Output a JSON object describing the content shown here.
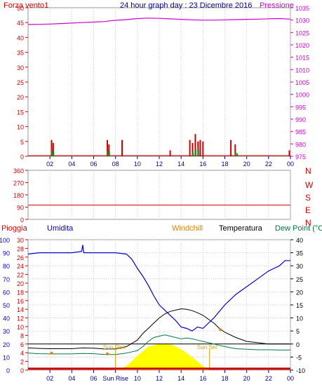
{
  "colors": {
    "wind": "#cc0000",
    "gust": "#cc0000",
    "windavg": "#228822",
    "pressure": "#cc00cc",
    "direction": "#cc0000",
    "rain": "#cc0000",
    "humidity": "#0000cc",
    "windchill": "#e08000",
    "temperature": "#000000",
    "dewpoint": "#007a40",
    "solar": "#ffff00",
    "grid": "#c8c8c8",
    "frame": "#9a9a9a",
    "xaxis": "#000088"
  },
  "header": {
    "left_label": "Forza vento1",
    "title": "24 hour graph day : 23 Dicembre 2016",
    "right_label": "Pressione"
  },
  "bottom_header": {
    "rain": "Pioggia",
    "humidity": "Umidita",
    "windchill": "Windchill",
    "temperature": "Temperatura",
    "dewpoint": "Dew Point (°C"
  },
  "sun_labels": {
    "rise_bottom": "Sun Rise",
    "set_bottom": "Sun Set",
    "rise_top": "Sun Rise",
    "set_top": "Sun Set"
  },
  "chart_data": [
    {
      "type": "bar",
      "panel": "wind_pressure",
      "x_tick_labels": [
        "02",
        "04",
        "06",
        "08",
        "10",
        "12",
        "14",
        "16",
        "18",
        "20",
        "22",
        "00"
      ],
      "x_ticks_hours": [
        2,
        4,
        6,
        8,
        10,
        12,
        14,
        16,
        18,
        20,
        22,
        24
      ],
      "xlim": [
        0,
        24
      ],
      "left_axis": {
        "label": "Forza vento1",
        "ylim": [
          0,
          50
        ],
        "ticks": [
          0,
          5,
          10,
          15,
          20,
          25,
          30,
          35,
          40,
          45,
          50
        ]
      },
      "right_axis": {
        "label": "Pressione",
        "ylim": [
          975,
          1035
        ],
        "ticks": [
          975,
          980,
          985,
          990,
          995,
          1000,
          1005,
          1010,
          1015,
          1020,
          1025,
          1030,
          1035
        ]
      },
      "series": [
        {
          "name": "Forza vento1",
          "kind": "gust_bars",
          "x": [
            2.15,
            2.3,
            7.25,
            7.4,
            8.6,
            13.0,
            14.8,
            15.05,
            15.3,
            15.55,
            15.75,
            16.0,
            18.55,
            18.95,
            23.9
          ],
          "values": [
            5.5,
            4.5,
            5.5,
            4.0,
            5.5,
            2.0,
            5.5,
            4.5,
            7.5,
            5.0,
            5.5,
            5.0,
            5.5,
            4.0,
            2.0
          ]
        },
        {
          "name": "avg wind",
          "kind": "avg_bars",
          "x": [
            2.15,
            2.3,
            7.25,
            7.4,
            15.05,
            15.3,
            15.55,
            18.95,
            19.1
          ],
          "values": [
            2.0,
            1.5,
            2.0,
            1.5,
            1.5,
            2.5,
            2.0,
            1.5,
            1.0
          ]
        },
        {
          "name": "Pressione",
          "kind": "line",
          "x": [
            0,
            1,
            2,
            3,
            4,
            5,
            6,
            7,
            7.5,
            8,
            9,
            10,
            11,
            12,
            13,
            14,
            15,
            16,
            17,
            18,
            19,
            20,
            21,
            22,
            23,
            24
          ],
          "values": [
            1028.2,
            1028.3,
            1028.4,
            1028.6,
            1028.8,
            1029.0,
            1029.2,
            1029.4,
            1029.7,
            1029.9,
            1030.2,
            1030.6,
            1030.8,
            1030.7,
            1030.5,
            1030.3,
            1030.1,
            1030.0,
            1030.0,
            1030.1,
            1030.2,
            1030.3,
            1030.4,
            1030.5,
            1030.6,
            1030.4
          ]
        }
      ]
    },
    {
      "type": "line",
      "panel": "wind_direction",
      "xlim": [
        0,
        24
      ],
      "y_ticks": [
        0,
        90,
        180,
        270,
        360
      ],
      "y_tick_labels": [
        "0",
        "90",
        "180",
        "270",
        "360"
      ],
      "ylim": [
        0,
        360
      ],
      "direction_labels": [
        "N",
        "W",
        "S",
        "E",
        "N"
      ],
      "series": [
        {
          "name": "direction",
          "x": [
            0,
            24
          ],
          "values": [
            105,
            105
          ]
        }
      ]
    },
    {
      "type": "line",
      "panel": "temperature_humidity",
      "x_tick_labels": [
        "02",
        "04",
        "06",
        "Sun Rise",
        "10",
        "12",
        "14",
        "16",
        "18",
        "20",
        "22",
        "00"
      ],
      "x_ticks_hours": [
        2,
        4,
        6,
        8,
        10,
        12,
        14,
        16,
        18,
        20,
        22,
        24
      ],
      "xlim": [
        0,
        24
      ],
      "humidity_axis": {
        "ylim": [
          0,
          100
        ],
        "ticks": [
          0,
          10,
          20,
          30,
          40,
          50,
          60,
          70,
          80,
          90,
          100
        ]
      },
      "rain_axis": {
        "ylim": [
          0,
          30
        ],
        "ticks": [
          0,
          2,
          4,
          6,
          8,
          10,
          12,
          14,
          16,
          18,
          20,
          22,
          24,
          26,
          28,
          30
        ]
      },
      "temperature_axis": {
        "ylim": [
          -10,
          40
        ],
        "ticks": [
          -10,
          -5,
          0,
          5,
          10,
          15,
          20,
          25,
          30,
          35,
          40
        ]
      },
      "sun": {
        "sunrise": 8.0,
        "sunset": 16.6,
        "solar_peak": 12.4,
        "solar_peak_temp_units": 0
      },
      "series": [
        {
          "name": "Umidita",
          "x": [
            0,
            1,
            2,
            3,
            4,
            4.9,
            5.0,
            5.1,
            6,
            7,
            8,
            9,
            9.5,
            10,
            10.5,
            11,
            11.5,
            12,
            12.5,
            13,
            13.5,
            14,
            14.5,
            15,
            15.5,
            16,
            16.5,
            17,
            17.5,
            18,
            19,
            20,
            21,
            22,
            23,
            23.5,
            24
          ],
          "values": [
            89,
            90,
            90,
            90,
            90,
            91,
            96,
            90,
            90,
            90,
            90,
            89,
            85,
            78,
            72,
            65,
            57,
            50,
            46,
            42,
            38,
            33,
            32,
            30,
            33,
            32,
            36,
            40,
            45,
            50,
            58,
            64,
            70,
            76,
            80,
            84,
            84
          ]
        },
        {
          "name": "Temperatura",
          "x": [
            0,
            1,
            2,
            3,
            4,
            5,
            6,
            7,
            8,
            9,
            10,
            10.5,
            11,
            11.5,
            12,
            12.5,
            13,
            13.5,
            14,
            14.5,
            15,
            15.5,
            16,
            16.5,
            17,
            17.5,
            18,
            19,
            20,
            21,
            22,
            23,
            24
          ],
          "values": [
            -1.5,
            -1.7,
            -1.8,
            -1.8,
            -1.8,
            -1.5,
            -1.6,
            -1.9,
            -1.9,
            -1.0,
            1.5,
            4.0,
            6.0,
            8.0,
            10.0,
            11.5,
            12.5,
            13.0,
            13.5,
            13.3,
            12.8,
            12.0,
            11.0,
            9.5,
            8.0,
            6.0,
            4.5,
            2.5,
            1.0,
            0.5,
            0.0,
            0.0,
            0.0
          ]
        },
        {
          "name": "Dew Point (°C",
          "x": [
            0,
            1,
            2,
            3,
            4,
            5,
            6,
            7,
            8,
            9,
            10,
            10.5,
            11,
            11.5,
            12,
            12.5,
            13,
            13.5,
            14,
            14.5,
            15,
            15.5,
            16,
            16.5,
            17,
            17.5,
            18,
            19,
            20,
            21,
            22,
            23,
            24
          ],
          "values": [
            -3.5,
            -3.7,
            -3.8,
            -3.8,
            -3.8,
            -3.6,
            -3.7,
            -4.0,
            -4.0,
            -3.5,
            -2.5,
            -1.0,
            1.0,
            2.5,
            3.0,
            3.5,
            3.0,
            2.5,
            2.0,
            2.3,
            2.0,
            1.5,
            1.0,
            0.5,
            0.0,
            -0.5,
            -1.0,
            -1.8,
            -2.0,
            -2.2,
            -2.2,
            -2.3,
            -2.3
          ]
        },
        {
          "name": "Windchill",
          "x": [
            2.15,
            7.25,
            17.6
          ],
          "values": [
            -3.5,
            -3.8,
            5.5
          ]
        },
        {
          "name": "solar",
          "x": [
            8.0,
            9,
            10,
            11,
            12,
            12.4,
            13,
            14,
            15,
            16,
            16.6
          ],
          "values": [
            -10,
            -8.5,
            -4.5,
            -1,
            0,
            0,
            0,
            -2,
            -5,
            -8.5,
            -10
          ]
        }
      ],
      "reference_line": 0
    }
  ]
}
